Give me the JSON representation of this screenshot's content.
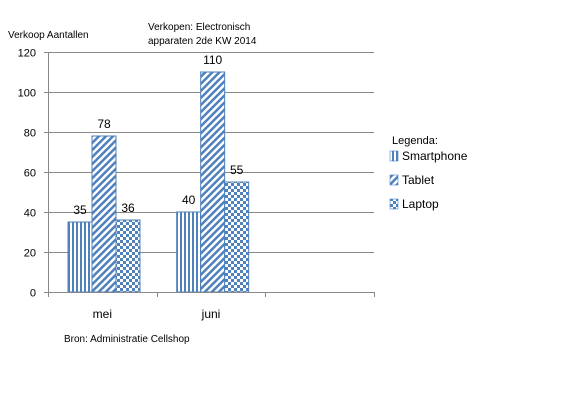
{
  "chart_data": {
    "type": "bar",
    "title": [
      "Verkopen: Electronisch",
      "apparaten 2de KW 2014"
    ],
    "ylabel": "Verkoop Aantallen",
    "xlabel": "",
    "categories": [
      "mei",
      "juni",
      ""
    ],
    "series": [
      {
        "name": "Smartphone",
        "values": [
          35,
          40,
          null
        ],
        "pattern": "vertical-stripes"
      },
      {
        "name": "Tablet",
        "values": [
          78,
          110,
          null
        ],
        "pattern": "diagonal-stripes"
      },
      {
        "name": "Laptop",
        "values": [
          36,
          55,
          null
        ],
        "pattern": "checker"
      }
    ],
    "ylim": [
      0,
      120
    ],
    "yticks": [
      0,
      20,
      40,
      60,
      80,
      100,
      120
    ],
    "grid": true,
    "data_labels": true,
    "legend_title": "Legenda:",
    "legend_position": "right",
    "source_note": "Bron: Administratie Cellshop",
    "colors": {
      "bar": "#4f81bd",
      "grid": "#888888",
      "axis": "#888888"
    }
  }
}
